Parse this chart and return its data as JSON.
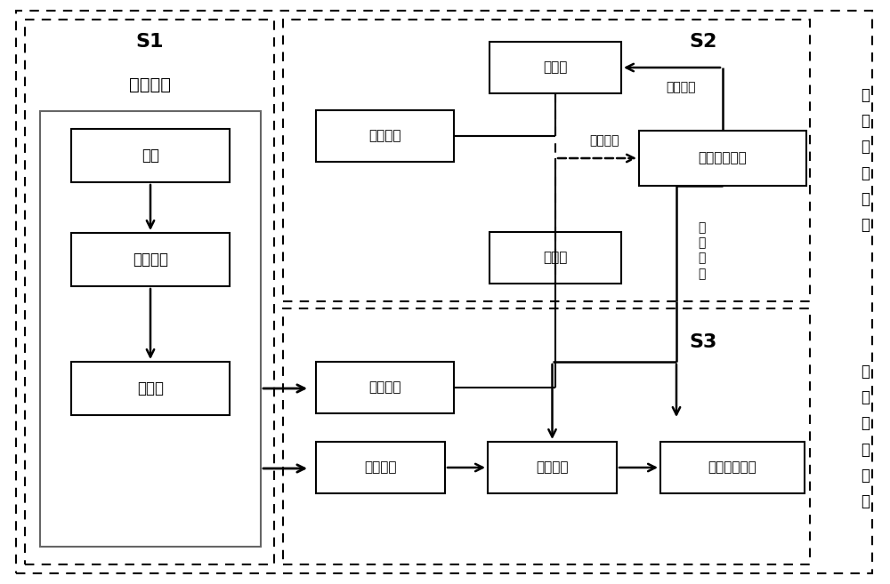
{
  "bg_color": "#ffffff",
  "s1_label": "S1",
  "s1_sublabel": "数据获取",
  "s2_label": "S2",
  "s3_label": "S3",
  "s2_side_label": "离\n线\n模\n式\n训\n练",
  "s3_side_label": "在\n线\n模\n式\n应\n用",
  "box_tance": "探测",
  "box_huibo": "回波信号",
  "box_yuchuli": "预处理",
  "box_cankao": "参考数据",
  "box_xunlian": "训练数据",
  "box_moshiku": "模式库",
  "box_canshuku": "参数库",
  "box_pipei": "匹配模式参数",
  "box_yingyong": "应用数据",
  "box_xinhao": "信号处理",
  "box_qixiang": "气象雷达产品",
  "lbl_moshi_cuncheng": "模式存储",
  "lbl_moshi_shibie": "模式识别",
  "lbl_moshi_yingyong": "模\n式\n应\n用"
}
